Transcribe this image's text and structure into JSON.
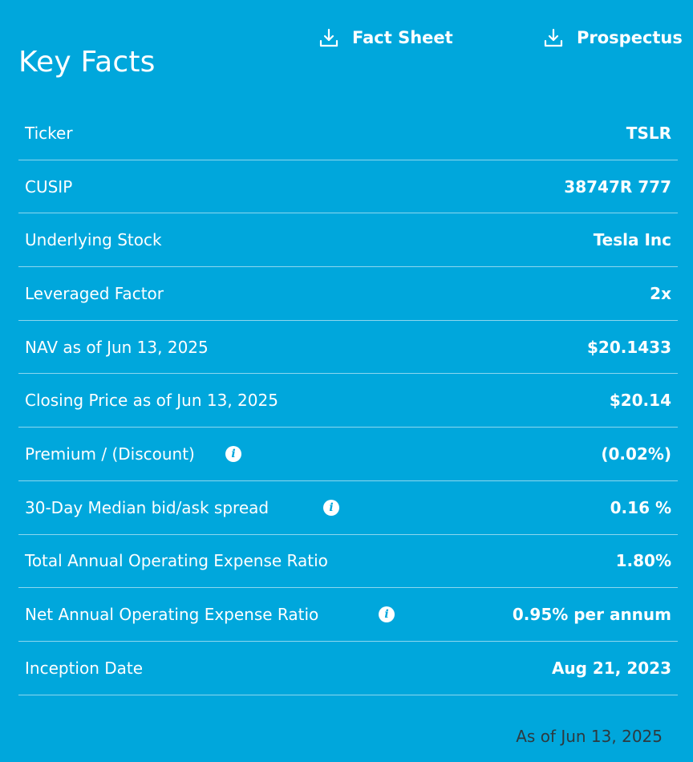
{
  "panel": {
    "title": "Key Facts",
    "background_color": "#00a7dc"
  },
  "downloads": {
    "fact_sheet_label": "Fact Sheet",
    "prospectus_label": "Prospectus",
    "icon": "download-icon"
  },
  "facts": [
    {
      "label": "Ticker",
      "value": "TSLR"
    },
    {
      "label": "CUSIP",
      "value": "38747R 777"
    },
    {
      "label": "Underlying Stock",
      "value": "Tesla Inc"
    },
    {
      "label": "Leveraged Factor",
      "value": "2x"
    },
    {
      "label": "NAV as of Jun 13, 2025",
      "value": "$20.1433"
    },
    {
      "label": "Closing Price as of Jun 13, 2025",
      "value": "$20.14"
    },
    {
      "label": "Premium / (Discount)",
      "value": "(0.02%)",
      "info": true
    },
    {
      "label": "30-Day Median bid/ask spread",
      "value": "0.16 %",
      "info": true
    },
    {
      "label": "Total Annual Operating Expense Ratio",
      "value": "1.80%"
    },
    {
      "label": "Net Annual Operating Expense Ratio",
      "value": "0.95% per annum",
      "info": true
    },
    {
      "label": "Inception Date",
      "value": "Aug 21, 2023"
    }
  ],
  "info_icon_glyph": "i",
  "footer": {
    "as_of": "As of Jun 13, 2025"
  }
}
